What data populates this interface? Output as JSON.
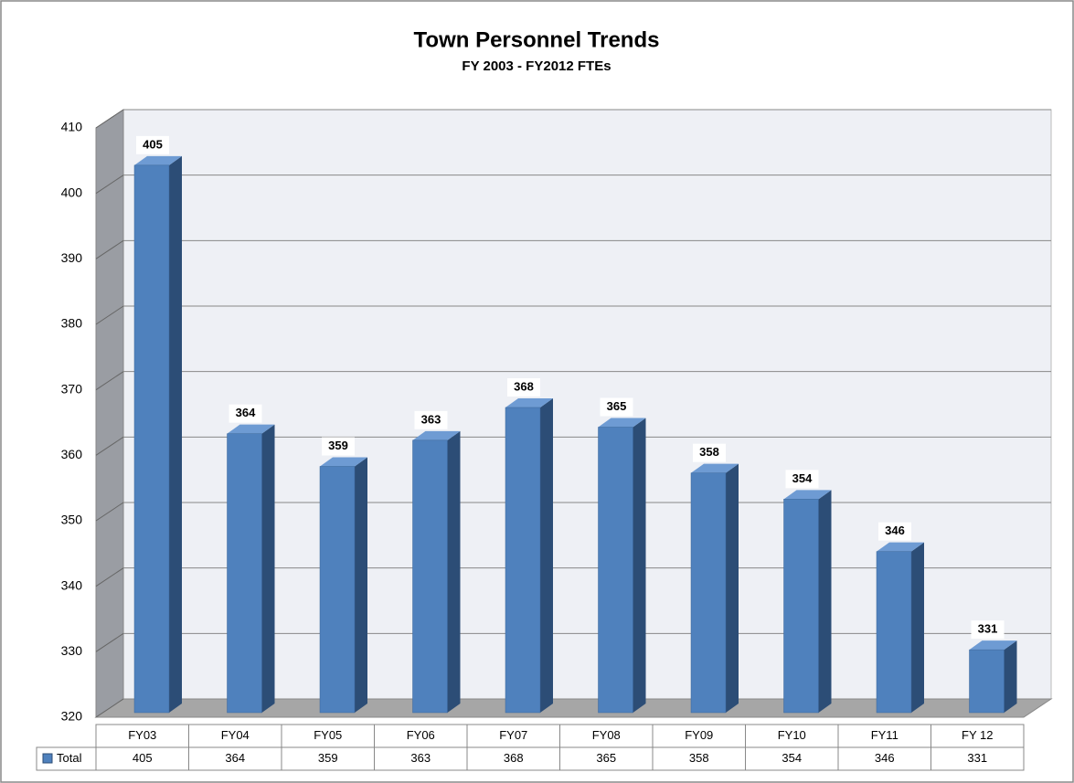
{
  "chart_data": {
    "type": "bar",
    "title": "Town Personnel Trends",
    "subtitle": "FY 2003 - FY2012 FTEs",
    "categories": [
      "FY03",
      "FY04",
      "FY05",
      "FY06",
      "FY07",
      "FY08",
      "FY09",
      "FY10",
      "FY11",
      "FY 12"
    ],
    "series": [
      {
        "name": "Total",
        "color": "#4f81bd",
        "values": [
          405,
          364,
          359,
          363,
          368,
          365,
          358,
          354,
          346,
          331
        ]
      }
    ],
    "ylim": [
      320,
      410
    ],
    "yticks": [
      320,
      330,
      340,
      350,
      360,
      370,
      380,
      390,
      400,
      410
    ],
    "grid": true,
    "data_table": true
  }
}
